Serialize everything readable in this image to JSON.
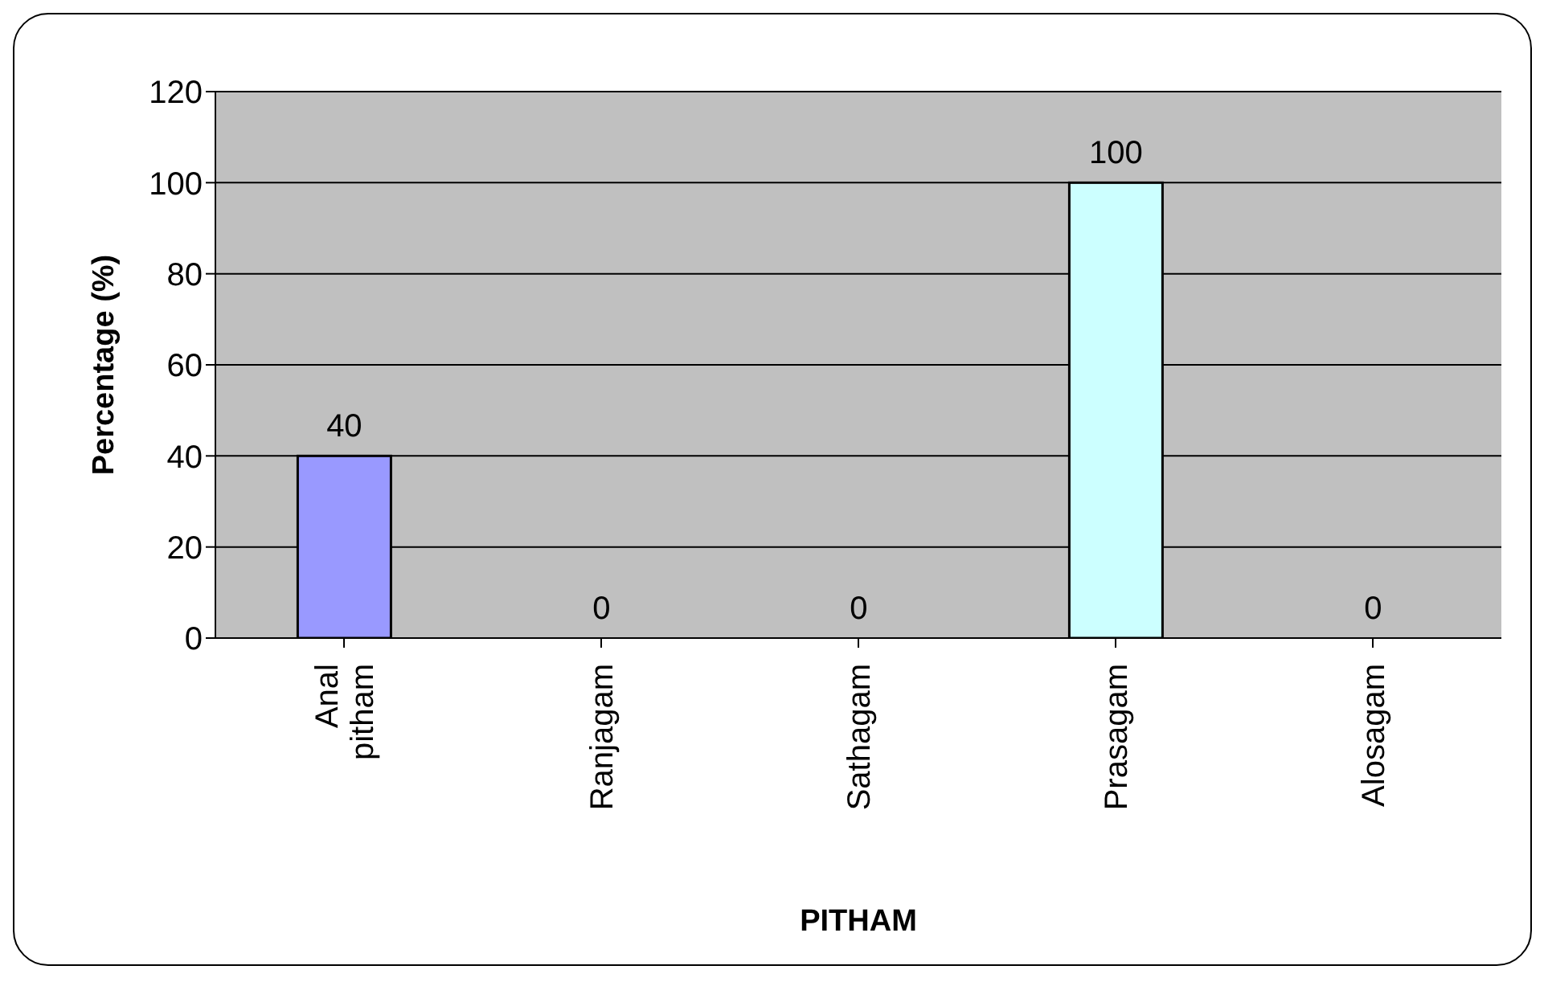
{
  "chart_data": {
    "type": "bar",
    "xlabel": "PITHAM",
    "ylabel": "Percentage (%)",
    "categories": [
      "Anal pitham",
      "Ranjagam",
      "Sathagam",
      "Prasagam",
      "Alosagam"
    ],
    "values": [
      40,
      0,
      0,
      100,
      0
    ],
    "colors": [
      "#9999ff",
      "#9999ff",
      "#9999ff",
      "#ccffff",
      "#9999ff"
    ],
    "ylim": [
      0,
      120
    ],
    "yticks": [
      0,
      20,
      40,
      60,
      80,
      100,
      120
    ],
    "grid": "y",
    "data_labels": true
  }
}
